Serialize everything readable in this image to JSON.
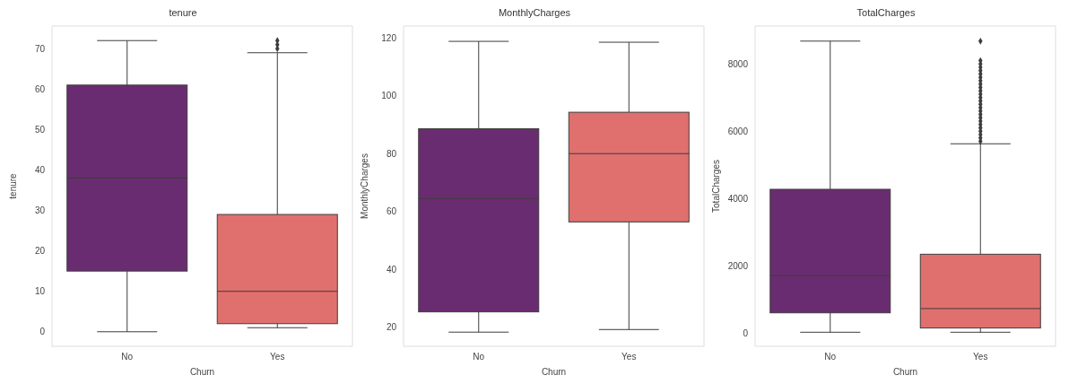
{
  "chart_data": [
    {
      "type": "box",
      "title": "tenure",
      "xlabel": "Churn",
      "ylabel": "tenure",
      "categories": [
        "No",
        "Yes"
      ],
      "colors": [
        "#6a2c70",
        "#df706e"
      ],
      "ylim": [
        -3.6,
        75.6
      ],
      "yticks": [
        0,
        10,
        20,
        30,
        40,
        50,
        60,
        70
      ],
      "boxes": [
        {
          "low": 0,
          "q1": 15,
          "median": 38,
          "q3": 61,
          "high": 72
        },
        {
          "low": 1,
          "q1": 2,
          "median": 10,
          "q3": 29,
          "high": 69,
          "outliers": [
            70,
            71,
            72
          ]
        }
      ]
    },
    {
      "type": "box",
      "title": "MonthlyCharges",
      "xlabel": "Churn",
      "ylabel": "MonthlyCharges",
      "categories": [
        "No",
        "Yes"
      ],
      "colors": [
        "#6a2c70",
        "#df706e"
      ],
      "ylim": [
        13.4,
        124.1
      ],
      "yticks": [
        20,
        40,
        60,
        80,
        100,
        120
      ],
      "boxes": [
        {
          "low": 18.3,
          "q1": 25.3,
          "median": 64.5,
          "q3": 88.6,
          "high": 118.8
        },
        {
          "low": 19.2,
          "q1": 56.4,
          "median": 80,
          "q3": 94.3,
          "high": 118.5
        }
      ]
    },
    {
      "type": "box",
      "title": "TotalCharges",
      "xlabel": "Churn",
      "ylabel": "TotalCharges",
      "categories": [
        "No",
        "Yes"
      ],
      "colors": [
        "#6a2c70",
        "#df706e"
      ],
      "ylim": [
        -400,
        9130
      ],
      "yticks": [
        0,
        2000,
        4000,
        6000,
        8000
      ],
      "boxes": [
        {
          "low": 19,
          "q1": 596,
          "median": 1702,
          "q3": 4272,
          "high": 8681
        },
        {
          "low": 19,
          "q1": 145,
          "median": 723,
          "q3": 2340,
          "high": 5626,
          "outliers": [
            5700,
            5800,
            5900,
            6000,
            6100,
            6200,
            6300,
            6400,
            6500,
            6600,
            6700,
            6800,
            6900,
            7000,
            7100,
            7200,
            7300,
            7400,
            7500,
            7600,
            7700,
            7800,
            7900,
            8000,
            8100,
            8680
          ]
        }
      ]
    }
  ]
}
